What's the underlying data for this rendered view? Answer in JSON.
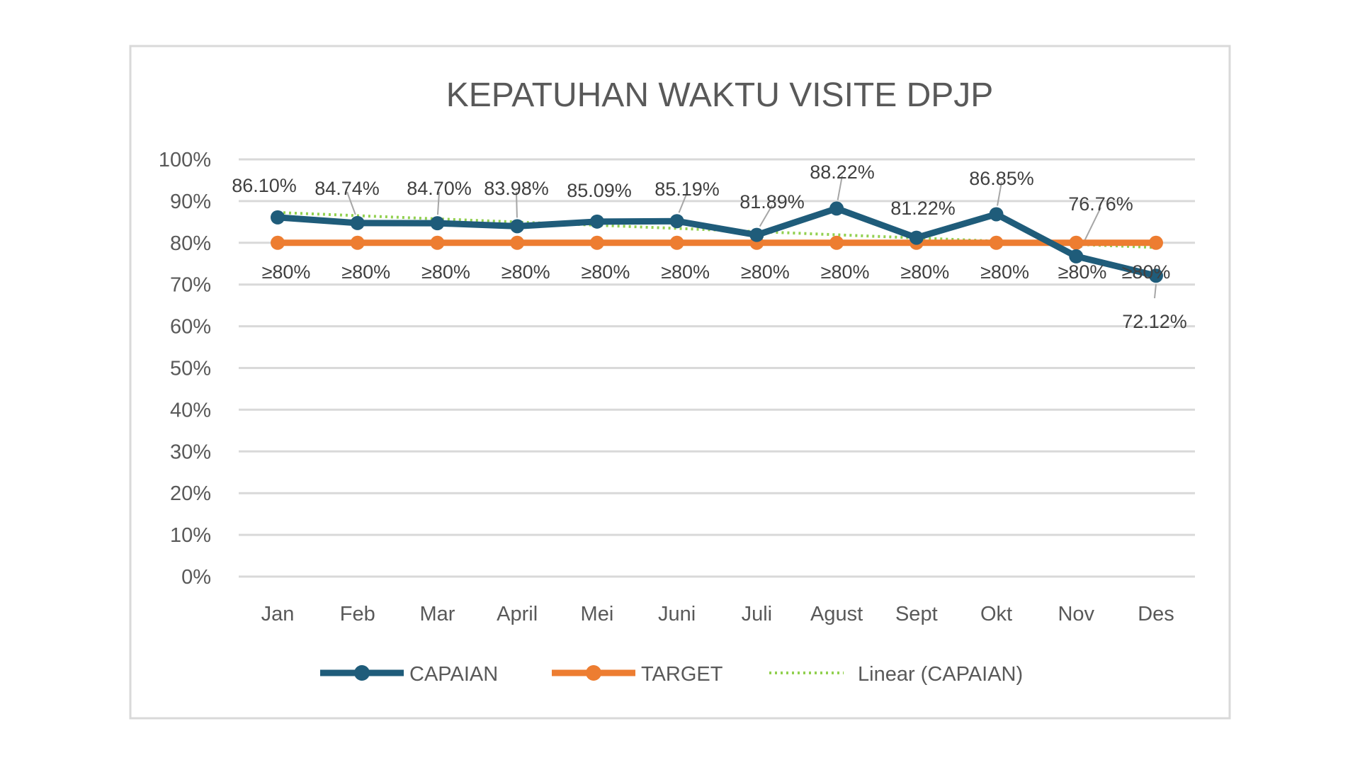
{
  "chart_data": {
    "type": "line",
    "title": "KEPATUHAN WAKTU VISITE DPJP",
    "categories": [
      "Jan",
      "Feb",
      "Mar",
      "April",
      "Mei",
      "Juni",
      "Juli",
      "Agust",
      "Sept",
      "Okt",
      "Nov",
      "Des"
    ],
    "ylim": [
      0,
      100
    ],
    "y_ticks": [
      "0%",
      "10%",
      "20%",
      "30%",
      "40%",
      "50%",
      "60%",
      "70%",
      "80%",
      "90%",
      "100%"
    ],
    "grid": true,
    "legend_position": "bottom",
    "series": [
      {
        "name": "CAPAIAN",
        "color": "#1F5C7A",
        "values": [
          86.1,
          84.74,
          84.7,
          83.98,
          85.09,
          85.19,
          81.89,
          88.22,
          81.22,
          86.85,
          76.76,
          72.12
        ],
        "labels": [
          "86.10%",
          "84.74%",
          "84.70%",
          "83.98%",
          "85.09%",
          "85.19%",
          "81.89%",
          "88.22%",
          "81.22%",
          "86.85%",
          "76.76%",
          "72.12%"
        ]
      },
      {
        "name": "TARGET",
        "color": "#ED7D31",
        "values": [
          80,
          80,
          80,
          80,
          80,
          80,
          80,
          80,
          80,
          80,
          80,
          80
        ],
        "labels": [
          "≥80%",
          "≥80%",
          "≥80%",
          "≥80%",
          "≥80%",
          "≥80%",
          "≥80%",
          "≥80%",
          "≥80%",
          "≥80%",
          "≥80%",
          "≥80%"
        ]
      },
      {
        "name": "Linear (CAPAIAN)",
        "color": "#92D050",
        "trendline_of": "CAPAIAN",
        "style": "dotted"
      }
    ]
  }
}
